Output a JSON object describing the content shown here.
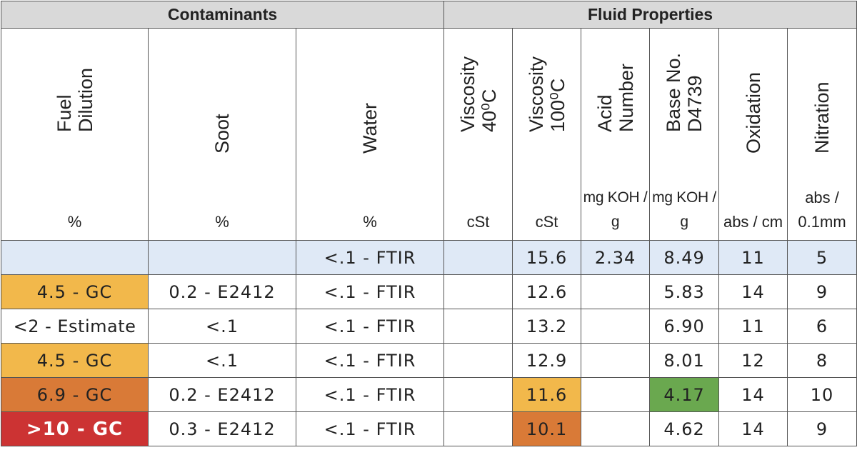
{
  "groups": {
    "contaminants": "Contaminants",
    "fluid_properties": "Fluid Properties"
  },
  "columns": [
    {
      "line1": "Fuel",
      "line2": "Dilution",
      "unit": "%"
    },
    {
      "line1": "Soot",
      "line2": "",
      "unit": "%"
    },
    {
      "line1": "Water",
      "line2": "",
      "unit": "%"
    },
    {
      "line1": "Viscosity",
      "line2": "40⁰C",
      "unit": "cSt"
    },
    {
      "line1": "Viscosity",
      "line2": "100⁰C",
      "unit": "cSt"
    },
    {
      "line1": "Acid",
      "line2": "Number",
      "unit": "mg KOH / g"
    },
    {
      "line1": "Base No.",
      "line2": "D4739",
      "unit": "mg KOH / g"
    },
    {
      "line1": "Oxidation",
      "line2": "",
      "unit": "abs / cm"
    },
    {
      "line1": "Nitration",
      "line2": "",
      "unit": "abs / 0.1mm"
    }
  ],
  "rows": [
    {
      "fuel": "",
      "soot": "",
      "water": "<.1 - FTIR",
      "visc40": "",
      "visc100": "15.6",
      "acid": "2.34",
      "base": "8.49",
      "oxidation": "11",
      "nitration": "5"
    },
    {
      "fuel": "4.5 - GC",
      "soot": "0.2 - E2412",
      "water": "<.1 - FTIR",
      "visc40": "",
      "visc100": "12.6",
      "acid": "",
      "base": "5.83",
      "oxidation": "14",
      "nitration": "9"
    },
    {
      "fuel": "<2 - Estimate",
      "soot": "<.1",
      "water": "<.1 - FTIR",
      "visc40": "",
      "visc100": "13.2",
      "acid": "",
      "base": "6.90",
      "oxidation": "11",
      "nitration": "6"
    },
    {
      "fuel": "4.5 - GC",
      "soot": "<.1",
      "water": "<.1 - FTIR",
      "visc40": "",
      "visc100": "12.9",
      "acid": "",
      "base": "8.01",
      "oxidation": "12",
      "nitration": "8"
    },
    {
      "fuel": "6.9 - GC",
      "soot": "0.2 - E2412",
      "water": "<.1 - FTIR",
      "visc40": "",
      "visc100": "11.6",
      "acid": "",
      "base": "4.17",
      "oxidation": "14",
      "nitration": "10"
    },
    {
      "fuel": ">10 - GC",
      "soot": "0.3 - E2412",
      "water": "<.1 - FTIR",
      "visc40": "",
      "visc100": "10.1",
      "acid": "",
      "base": "4.62",
      "oxidation": "14",
      "nitration": "9"
    }
  ],
  "colors": {
    "reference_row": "#dfe9f6",
    "caution_yellow": "#f2b84b",
    "warning_orange": "#d97a37",
    "critical_red": "#cc3333",
    "low_green": "#6aa84f",
    "header_gray": "#d9d9d9"
  }
}
